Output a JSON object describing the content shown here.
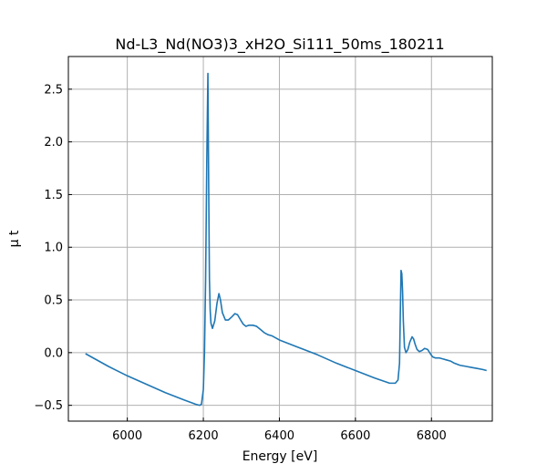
{
  "chart_data": {
    "type": "line",
    "title": "Nd-L3_Nd(NO3)3_xH2O_Si111_50ms_180211",
    "xlabel": "Energy [eV]",
    "ylabel": "μ t",
    "xlim": [
      5845,
      6960
    ],
    "ylim": [
      -0.65,
      2.81
    ],
    "xticks": [
      6000,
      6200,
      6400,
      6600,
      6800
    ],
    "xtick_labels": [
      "6000",
      "6200",
      "6400",
      "6600",
      "6800"
    ],
    "yticks": [
      -0.5,
      0.0,
      0.5,
      1.0,
      1.5,
      2.0,
      2.5
    ],
    "ytick_labels": [
      "−0.5",
      "0.0",
      "0.5",
      "1.0",
      "1.5",
      "2.0",
      "2.5"
    ],
    "grid": true,
    "ticks_direction": "in",
    "color": "#1f77b4",
    "series": [
      {
        "x": [
          5890,
          5950,
          6000,
          6050,
          6100,
          6150,
          6180,
          6190,
          6195,
          6200,
          6203,
          6206,
          6209,
          6212,
          6214,
          6216,
          6218,
          6220,
          6224,
          6230,
          6236,
          6241,
          6245,
          6250,
          6258,
          6266,
          6275,
          6283,
          6290,
          6298,
          6305,
          6312,
          6320,
          6330,
          6340,
          6350,
          6360,
          6370,
          6380,
          6400,
          6450,
          6500,
          6550,
          6600,
          6650,
          6690,
          6705,
          6712,
          6716,
          6718,
          6720,
          6722,
          6724,
          6726,
          6729,
          6733,
          6738,
          6743,
          6749,
          6753,
          6757,
          6762,
          6768,
          6775,
          6782,
          6790,
          6797,
          6803,
          6810,
          6820,
          6830,
          6840,
          6850,
          6860,
          6875,
          6890,
          6905,
          6920,
          6935,
          6945
        ],
        "y": [
          -0.01,
          -0.13,
          -0.22,
          -0.3,
          -0.38,
          -0.45,
          -0.49,
          -0.5,
          -0.49,
          -0.35,
          0.0,
          0.7,
          1.8,
          2.65,
          1.6,
          0.7,
          0.4,
          0.28,
          0.23,
          0.3,
          0.47,
          0.56,
          0.5,
          0.38,
          0.31,
          0.31,
          0.34,
          0.37,
          0.36,
          0.31,
          0.27,
          0.25,
          0.26,
          0.26,
          0.25,
          0.22,
          0.19,
          0.17,
          0.16,
          0.12,
          0.05,
          -0.02,
          -0.1,
          -0.17,
          -0.24,
          -0.29,
          -0.29,
          -0.26,
          -0.1,
          0.35,
          0.78,
          0.75,
          0.58,
          0.3,
          0.05,
          0.0,
          0.03,
          0.1,
          0.15,
          0.13,
          0.08,
          0.03,
          0.01,
          0.02,
          0.04,
          0.03,
          -0.01,
          -0.04,
          -0.05,
          -0.05,
          -0.06,
          -0.07,
          -0.08,
          -0.1,
          -0.12,
          -0.13,
          -0.14,
          -0.15,
          -0.16,
          -0.17
        ]
      }
    ]
  }
}
